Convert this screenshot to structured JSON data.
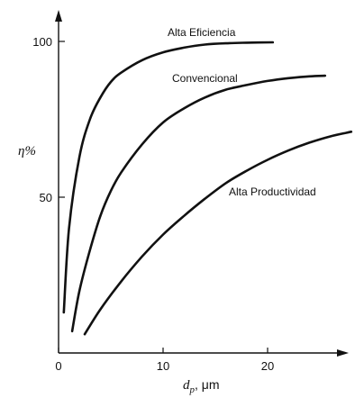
{
  "chart_data": {
    "type": "line",
    "title": "",
    "xlabel": {
      "symbol": "d",
      "subscript": "p",
      "unit": ", μm"
    },
    "ylabel": "η%",
    "xlim": [
      0,
      28
    ],
    "ylim": [
      0,
      110
    ],
    "xticks": [
      0,
      10,
      20
    ],
    "yticks": [
      50,
      100
    ],
    "grid": false,
    "series": [
      {
        "name": "Alta Eficiencia",
        "x": [
          0.5,
          1,
          2,
          3,
          4,
          5,
          6,
          8,
          10,
          12,
          14,
          16,
          18,
          20.5
        ],
        "y": [
          13,
          40,
          63,
          75,
          82,
          87,
          90,
          94,
          96.5,
          98,
          99,
          99.4,
          99.6,
          99.7
        ]
      },
      {
        "name": "Convencional",
        "x": [
          1.3,
          2,
          3,
          4,
          5,
          6,
          8,
          10,
          12,
          14,
          16,
          18,
          20,
          22,
          24,
          25.5
        ],
        "y": [
          7,
          20,
          33,
          44,
          52,
          58,
          67,
          74,
          78.5,
          82,
          84.5,
          86,
          87.3,
          88.2,
          88.8,
          89
        ]
      },
      {
        "name": "Alta Productividad",
        "x": [
          2.5,
          4,
          6,
          8,
          10,
          12,
          14,
          16,
          18,
          20,
          22,
          24,
          26,
          28
        ],
        "y": [
          6,
          14,
          23,
          31,
          38,
          44,
          49.5,
          54.5,
          58.5,
          62,
          65,
          67.5,
          69.5,
          71
        ]
      }
    ]
  }
}
